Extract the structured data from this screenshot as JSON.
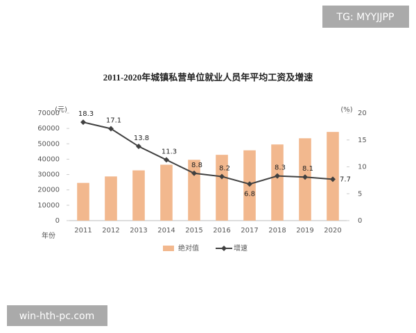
{
  "chart_data": {
    "type": "bar-line",
    "title": "2011-2020年城镇私营单位就业人员年平均工资及增速",
    "x_label": "年份",
    "y_label": "(元)",
    "y2_label": "(%)",
    "categories": [
      "2011",
      "2012",
      "2013",
      "2014",
      "2015",
      "2016",
      "2017",
      "2018",
      "2019",
      "2020"
    ],
    "series": [
      {
        "name": "绝对值",
        "type": "bar",
        "color": "#f2b88e",
        "values": [
          24556,
          28752,
          32706,
          36390,
          39589,
          42833,
          45761,
          49575,
          53604,
          57727
        ]
      },
      {
        "name": "增速",
        "type": "line",
        "axis": "y2",
        "color": "#404040",
        "values": [
          18.3,
          17.1,
          13.8,
          11.3,
          8.8,
          8.2,
          6.8,
          8.3,
          8.1,
          7.7
        ]
      }
    ],
    "ylim": [
      0,
      70000
    ],
    "yticks": [
      0,
      10000,
      20000,
      30000,
      40000,
      50000,
      60000,
      70000
    ],
    "y2lim": [
      0,
      20
    ],
    "y2ticks": [
      0,
      5,
      10,
      15,
      20
    ],
    "grid": false,
    "legend": "bottom"
  },
  "watermarks": [
    "TG: MYYJJPP",
    "win-hth-pc.com"
  ]
}
